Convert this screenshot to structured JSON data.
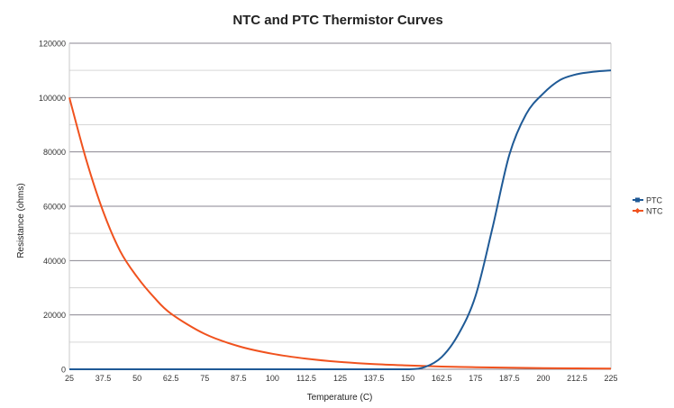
{
  "chart_data": {
    "type": "line",
    "title": "NTC and PTC Thermistor Curves",
    "xlabel": "Temperature (C)",
    "ylabel": "Resistance (ohms)",
    "xlim": [
      25,
      225
    ],
    "ylim": [
      0,
      120000
    ],
    "x_ticks": [
      "25",
      "37.5",
      "50",
      "62.5",
      "75",
      "87.5",
      "100",
      "112.5",
      "125",
      "137.5",
      "150",
      "162.5",
      "175",
      "187.5",
      "200",
      "212.5",
      "225"
    ],
    "y_ticks": [
      "0",
      "20000",
      "40000",
      "60000",
      "80000",
      "100000",
      "120000"
    ],
    "grid": true,
    "legend_position": "right",
    "series": [
      {
        "name": "PTC",
        "color": "#1f5a96",
        "x": [
          25,
          37.5,
          50,
          62.5,
          75,
          87.5,
          100,
          112.5,
          125,
          137.5,
          150,
          156.25,
          162.5,
          168.75,
          175,
          181.25,
          187.5,
          193.75,
          200,
          206.25,
          212.5,
          218.75,
          225
        ],
        "y": [
          0,
          0,
          0,
          0,
          0,
          0,
          0,
          0,
          0,
          0,
          0,
          800,
          4500,
          13000,
          27000,
          52000,
          79000,
          94000,
          101500,
          106500,
          108600,
          109500,
          110000
        ]
      },
      {
        "name": "NTC",
        "color": "#f0521e",
        "x": [
          25,
          31.25,
          37.5,
          43.75,
          50,
          56.25,
          62.5,
          75,
          87.5,
          100,
          112.5,
          125,
          137.5,
          150,
          162.5,
          175,
          187.5,
          200,
          212.5,
          225
        ],
        "y": [
          100000,
          77000,
          58000,
          43500,
          34000,
          26500,
          20500,
          13000,
          8500,
          5700,
          3900,
          2700,
          1900,
          1400,
          1000,
          750,
          560,
          430,
          330,
          260
        ]
      }
    ]
  }
}
